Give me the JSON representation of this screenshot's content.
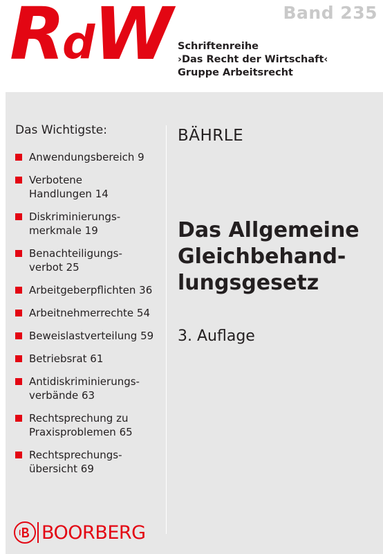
{
  "header": {
    "logo": {
      "big1": "R",
      "small": "d",
      "big2": "W"
    },
    "band": "Band 235",
    "series": [
      "Schriftenreihe",
      "›Das Recht der Wirtschaft‹",
      "Gruppe Arbeitsrecht"
    ]
  },
  "contents": {
    "heading": "Das Wichtigste:",
    "items": [
      "Anwendungsbereich 9",
      "Verbotene\nHandlungen 14",
      "Diskriminierungs-\nmerkmale 19",
      "Benachteiligungs-\nverbot 25",
      "Arbeitgeberpflichten 36",
      "Arbeitnehmerrechte 54",
      "Beweislastverteilung 59",
      "Betriebsrat 61",
      "Antidiskriminierungs-\nverbände 63",
      "Rechtsprechung zu\nPraxisproblemen 65",
      "Rechtsprechungs-\nübersicht 69"
    ]
  },
  "author": "BÄHRLE",
  "title": "Das Allgemeine\nGleichbehand-\nlungsgesetz",
  "edition": "3. Auflage",
  "publisher": {
    "name": "BOORBERG",
    "icon": "boorberg-logo-icon"
  },
  "colors": {
    "accent": "#e30613",
    "panel": "#e7e7e7",
    "text": "#231f20",
    "band": "#c9c9c9"
  }
}
